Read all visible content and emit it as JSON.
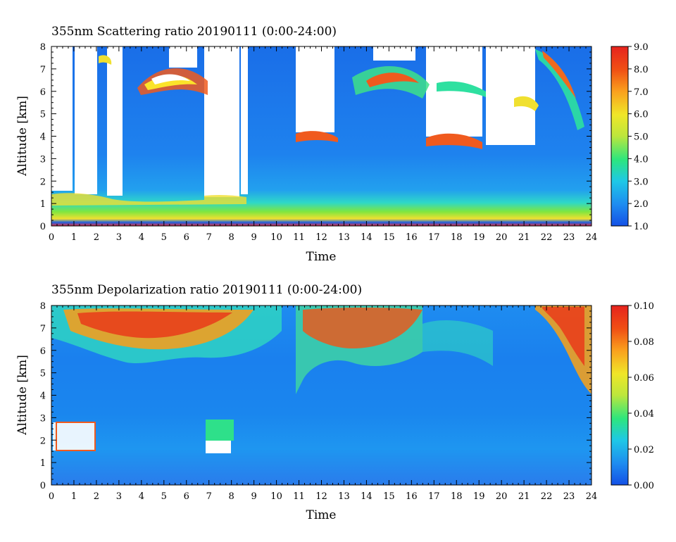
{
  "chart_data": [
    {
      "type": "heatmap",
      "title": "355nm Scattering ratio  20190111 (0:00-24:00)",
      "xlabel": "Time",
      "ylabel": "Altitude [km]",
      "xlim": [
        0,
        24
      ],
      "ylim": [
        0,
        8
      ],
      "x_ticks": [
        "0",
        "1",
        "2",
        "3",
        "4",
        "5",
        "6",
        "7",
        "8",
        "9",
        "10",
        "11",
        "12",
        "13",
        "14",
        "15",
        "16",
        "17",
        "18",
        "19",
        "20",
        "21",
        "22",
        "23",
        "24"
      ],
      "y_ticks": [
        "0",
        "1",
        "2",
        "3",
        "4",
        "5",
        "6",
        "7",
        "8"
      ],
      "colorbar": {
        "range": [
          1.0,
          9.0
        ],
        "ticks": [
          "1.0",
          "2.0",
          "3.0",
          "4.0",
          "5.0",
          "6.0",
          "7.0",
          "8.0",
          "9.0"
        ],
        "colors": [
          "#1450e6",
          "#1e8cf0",
          "#1ec8e6",
          "#2de67d",
          "#bce63c",
          "#f0e628",
          "#faa01e",
          "#f05014",
          "#e6231e"
        ]
      }
    },
    {
      "type": "heatmap",
      "title": "355nm Depolarization ratio  20190111 (0:00-24:00)",
      "xlabel": "Time",
      "ylabel": "Altitude [km]",
      "xlim": [
        0,
        24
      ],
      "ylim": [
        0,
        8
      ],
      "x_ticks": [
        "0",
        "1",
        "2",
        "3",
        "4",
        "5",
        "6",
        "7",
        "8",
        "9",
        "10",
        "11",
        "12",
        "13",
        "14",
        "15",
        "16",
        "17",
        "18",
        "19",
        "20",
        "21",
        "22",
        "23",
        "24"
      ],
      "y_ticks": [
        "0",
        "1",
        "2",
        "3",
        "4",
        "5",
        "6",
        "7",
        "8"
      ],
      "colorbar": {
        "range": [
          0.0,
          0.1
        ],
        "ticks": [
          "0.00",
          "0.02",
          "0.04",
          "0.06",
          "0.08",
          "0.10"
        ],
        "colors": [
          "#1450e6",
          "#1e8cf0",
          "#1ec8e6",
          "#2de67d",
          "#bce63c",
          "#f0e628",
          "#faa01e",
          "#f05014",
          "#e6231e"
        ]
      }
    }
  ]
}
